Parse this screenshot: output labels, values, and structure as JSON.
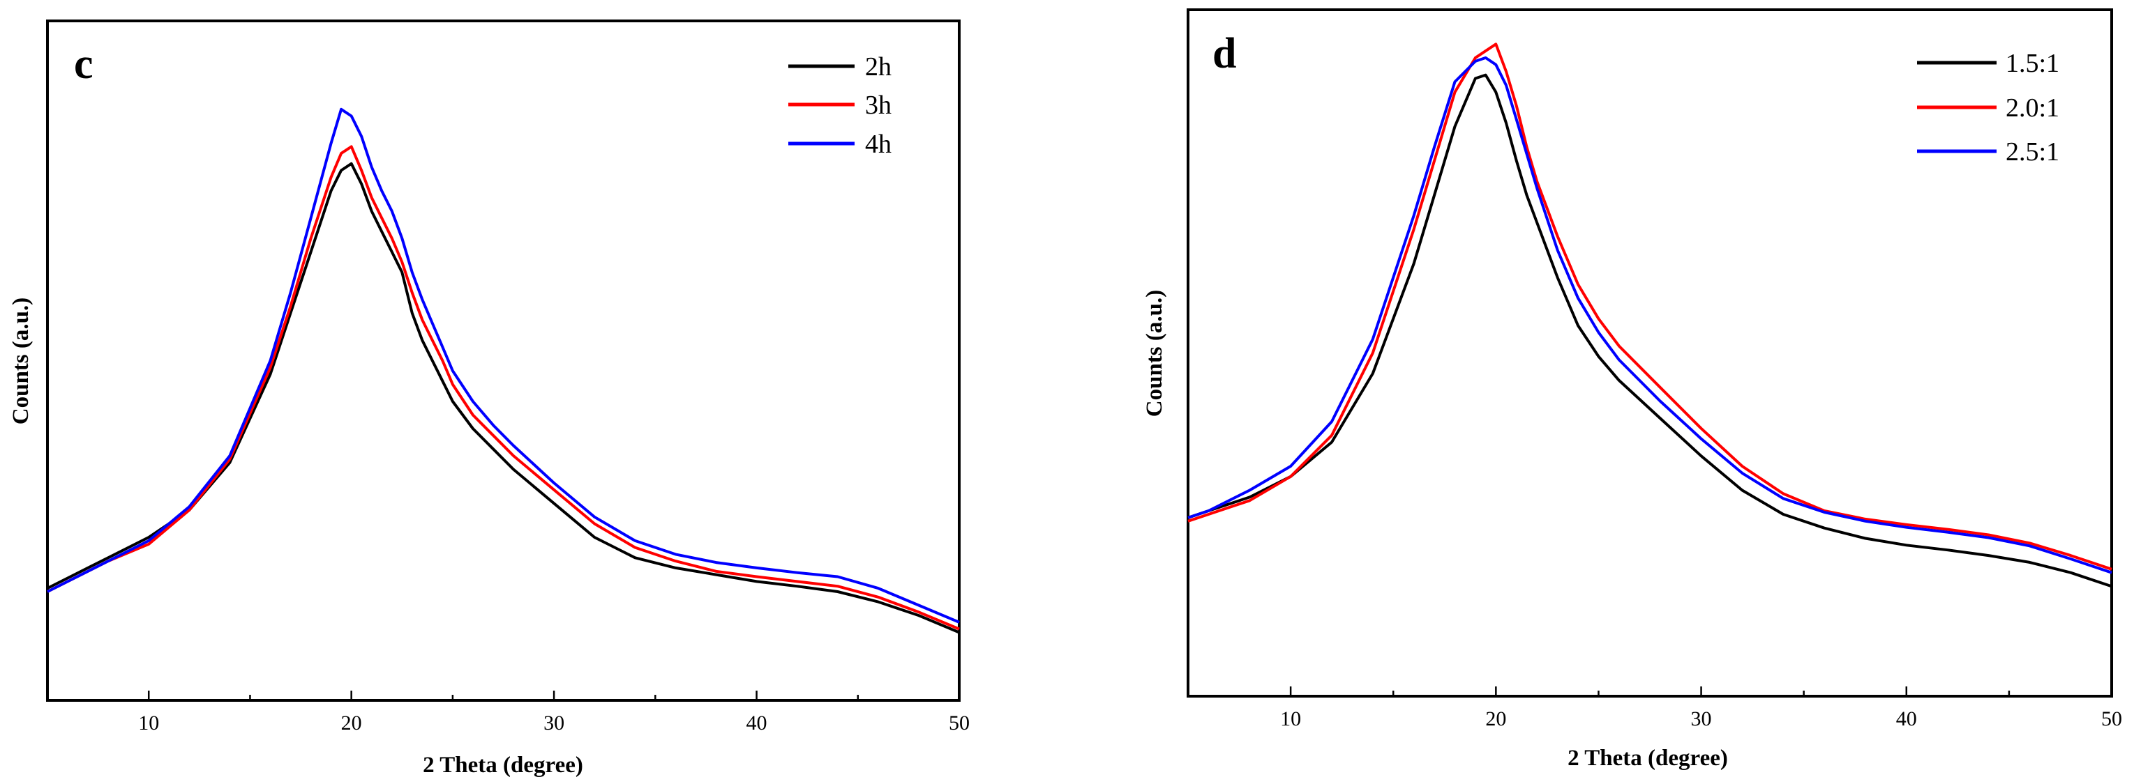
{
  "chart_data": [
    {
      "type": "line",
      "panel_label": "c",
      "xlabel": "2 Theta (degree)",
      "ylabel": "Counts (a.u.)",
      "xlim": [
        5,
        50
      ],
      "ylim": [
        0,
        100
      ],
      "xticks": [
        10,
        20,
        30,
        40,
        50
      ],
      "xtick_labels": [
        "10",
        "20",
        "30",
        "40",
        "50"
      ],
      "yticks_labeled": false,
      "legend_position": "top-right",
      "series": [
        {
          "name": "2h",
          "color": "#000000",
          "x": [
            5,
            6,
            8,
            10,
            12,
            14,
            16,
            17,
            18,
            19,
            19.5,
            20,
            20.5,
            21,
            21.5,
            22,
            22.5,
            23,
            23.5,
            24,
            24.5,
            25,
            26,
            27,
            28,
            30,
            32,
            34,
            36,
            38,
            40,
            42,
            44,
            46,
            48,
            50
          ],
          "y": [
            16.5,
            18,
            21,
            24,
            28,
            35,
            48,
            57,
            66,
            75,
            78,
            79,
            76,
            72,
            69,
            66,
            63,
            57,
            53,
            50,
            47,
            44,
            40,
            37,
            34,
            29,
            24,
            21,
            19.5,
            18.5,
            17.5,
            16.8,
            16,
            14.5,
            12.5,
            10
          ]
        },
        {
          "name": "3h",
          "color": "#ff0000",
          "x": [
            5,
            6,
            8,
            10,
            12,
            14,
            16,
            17,
            18,
            19,
            19.5,
            20,
            20.5,
            21,
            21.5,
            22,
            22.5,
            23,
            23.5,
            24,
            24.5,
            25,
            26,
            27,
            28,
            30,
            32,
            34,
            36,
            38,
            40,
            42,
            44,
            46,
            48,
            50
          ],
          "y": [
            16,
            17.5,
            20.5,
            23,
            28,
            35.5,
            49,
            58,
            68,
            77,
            80.5,
            81.5,
            78,
            74,
            71,
            68,
            64.5,
            60,
            56,
            53,
            50,
            46.5,
            42,
            39,
            36,
            31,
            26,
            22.5,
            20.5,
            19,
            18.2,
            17.5,
            16.8,
            15.2,
            13,
            10.5
          ]
        },
        {
          "name": "4h",
          "color": "#0000ff",
          "x": [
            5,
            6,
            8,
            10,
            12,
            14,
            16,
            17,
            18,
            19,
            19.5,
            20,
            20.5,
            21,
            21.5,
            22,
            22.5,
            23,
            23.5,
            24,
            24.5,
            25,
            26,
            27,
            28,
            30,
            32,
            34,
            36,
            38,
            40,
            42,
            44,
            46,
            48,
            50
          ],
          "y": [
            16,
            17.5,
            20.5,
            23.5,
            28.5,
            36,
            50,
            60,
            71,
            82,
            87,
            86,
            83,
            78.5,
            75,
            72,
            68,
            63,
            59,
            55.5,
            52,
            48.5,
            44,
            40.5,
            37.5,
            32,
            27,
            23.5,
            21.5,
            20.3,
            19.5,
            18.8,
            18.2,
            16.5,
            14,
            11.5
          ]
        }
      ]
    },
    {
      "type": "line",
      "panel_label": "d",
      "xlabel": "2 Theta (degree)",
      "ylabel": "Counts (a.u.)",
      "xlim": [
        5,
        50
      ],
      "ylim": [
        0,
        100
      ],
      "xticks": [
        10,
        20,
        30,
        40,
        50
      ],
      "xtick_labels": [
        "10",
        "20",
        "30",
        "40",
        "50"
      ],
      "yticks_labeled": false,
      "legend_position": "top-right",
      "series": [
        {
          "name": "1.5:1",
          "color": "#000000",
          "x": [
            5,
            6,
            8,
            10,
            12,
            14,
            16,
            17,
            18,
            19,
            19.5,
            20,
            20.5,
            21,
            21.5,
            22,
            23,
            24,
            25,
            26,
            28,
            30,
            32,
            34,
            36,
            38,
            40,
            42,
            44,
            46,
            48,
            50
          ],
          "y": [
            26,
            27,
            29,
            32,
            37,
            47,
            63,
            73,
            83,
            90,
            90.5,
            88,
            83.5,
            78,
            73,
            69,
            61,
            54,
            49.5,
            46,
            40.5,
            35,
            30,
            26.5,
            24.5,
            23,
            22,
            21.3,
            20.5,
            19.5,
            18,
            16
          ]
        },
        {
          "name": "2.0:1",
          "color": "#ff0000",
          "x": [
            5,
            6,
            8,
            10,
            12,
            14,
            16,
            17,
            18,
            19,
            19.5,
            20,
            20.5,
            21,
            21.5,
            22,
            23,
            24,
            25,
            26,
            28,
            30,
            32,
            34,
            36,
            38,
            40,
            42,
            44,
            46,
            48,
            50
          ],
          "y": [
            25.5,
            26.5,
            28.5,
            32,
            38,
            50,
            68,
            78,
            88,
            93,
            94,
            95,
            91,
            86,
            80,
            75,
            67,
            60,
            55,
            51,
            45,
            39,
            33.5,
            29.5,
            27,
            25.8,
            25,
            24.3,
            23.5,
            22.3,
            20.5,
            18.5
          ]
        },
        {
          "name": "2.5:1",
          "color": "#0000ff",
          "x": [
            5,
            6,
            8,
            10,
            12,
            14,
            16,
            17,
            18,
            19,
            19.5,
            20,
            20.5,
            21,
            21.5,
            22,
            23,
            24,
            25,
            26,
            28,
            30,
            32,
            34,
            36,
            38,
            40,
            42,
            44,
            46,
            48,
            50
          ],
          "y": [
            26,
            27,
            30,
            33.5,
            40,
            52,
            70,
            80,
            89.5,
            92.5,
            93,
            92,
            89,
            84,
            79,
            74,
            65,
            58,
            53,
            49,
            43,
            37.5,
            32.5,
            28.8,
            26.8,
            25.5,
            24.6,
            23.9,
            23.1,
            21.9,
            20,
            18
          ]
        }
      ]
    }
  ]
}
